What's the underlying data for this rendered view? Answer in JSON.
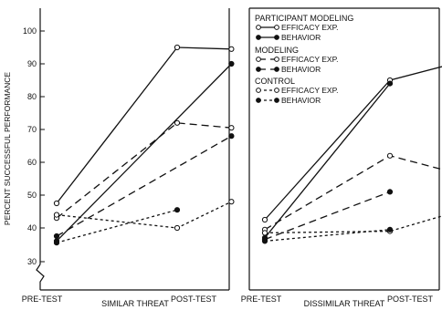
{
  "chart_data": [
    {
      "type": "line",
      "title": "",
      "xlabel": "SIMILAR THREAT",
      "ylabel": "PERCENT SUCCESSFUL PERFORMANCE",
      "categories": [
        "PRE-TEST",
        "POST-TEST"
      ],
      "ylim": [
        30,
        100
      ],
      "yticks": [
        30,
        40,
        50,
        60,
        70,
        80,
        90,
        100
      ],
      "series": [
        {
          "name": "PARTICIPANT MODELING EFFICACY EXP.",
          "group": "participant",
          "measure": "efficacy",
          "x": [
            0,
            1,
            1.45
          ],
          "values": [
            47.5,
            95,
            94.5
          ]
        },
        {
          "name": "PARTICIPANT MODELING BEHAVIOR",
          "group": "participant",
          "measure": "behavior",
          "x": [
            0,
            1.45
          ],
          "values": [
            36,
            90
          ]
        },
        {
          "name": "MODELING EFFICACY EXP.",
          "group": "modeling",
          "measure": "efficacy",
          "x": [
            0,
            1,
            1.45
          ],
          "values": [
            43,
            72,
            70.5
          ]
        },
        {
          "name": "MODELING BEHAVIOR",
          "group": "modeling",
          "measure": "behavior",
          "x": [
            0,
            1.45
          ],
          "values": [
            37.5,
            68
          ]
        },
        {
          "name": "CONTROL EFFICACY EXP.",
          "group": "control",
          "measure": "efficacy",
          "x": [
            0,
            1,
            1.45
          ],
          "values": [
            44,
            40,
            48
          ]
        },
        {
          "name": "CONTROL BEHAVIOR",
          "group": "control",
          "measure": "behavior",
          "x": [
            0,
            1
          ],
          "values": [
            35.5,
            45.5
          ]
        }
      ]
    },
    {
      "type": "line",
      "title": "",
      "xlabel": "DISSIMILAR THREAT",
      "ylabel": "",
      "categories": [
        "PRE-TEST",
        "POST-TEST"
      ],
      "ylim": [
        30,
        100
      ],
      "series": [
        {
          "name": "PARTICIPANT MODELING EFFICACY EXP.",
          "group": "participant",
          "measure": "efficacy",
          "x": [
            0,
            1,
            1.45
          ],
          "values": [
            42.5,
            85,
            89.5
          ]
        },
        {
          "name": "PARTICIPANT MODELING BEHAVIOR",
          "group": "participant",
          "measure": "behavior",
          "x": [
            0,
            1
          ],
          "values": [
            37,
            84
          ]
        },
        {
          "name": "MODELING EFFICACY EXP.",
          "group": "modeling",
          "measure": "efficacy",
          "x": [
            0,
            1,
            1.45
          ],
          "values": [
            39.5,
            62,
            57.5
          ]
        },
        {
          "name": "MODELING BEHAVIOR",
          "group": "modeling",
          "measure": "behavior",
          "x": [
            0,
            1
          ],
          "values": [
            36.5,
            51
          ]
        },
        {
          "name": "CONTROL EFFICACY EXP.",
          "group": "control",
          "measure": "efficacy",
          "x": [
            0,
            1,
            1.45
          ],
          "values": [
            38.5,
            39,
            44
          ]
        },
        {
          "name": "CONTROL BEHAVIOR",
          "group": "control",
          "measure": "behavior",
          "x": [
            0,
            1
          ],
          "values": [
            36,
            39.5
          ]
        }
      ]
    }
  ],
  "legend": {
    "groups": [
      {
        "key": "participant",
        "title": "PARTICIPANT MODELING",
        "efficacy_label": "EFFICACY EXP.",
        "behavior_label": "BEHAVIOR"
      },
      {
        "key": "modeling",
        "title": "MODELING",
        "efficacy_label": "EFFICACY EXP.",
        "behavior_label": "BEHAVIOR"
      },
      {
        "key": "control",
        "title": "CONTROL",
        "efficacy_label": "EFFICACY EXP.",
        "behavior_label": "BEHAVIOR"
      }
    ]
  },
  "colors": {
    "ink": "#111111",
    "background": "#ffffff"
  }
}
